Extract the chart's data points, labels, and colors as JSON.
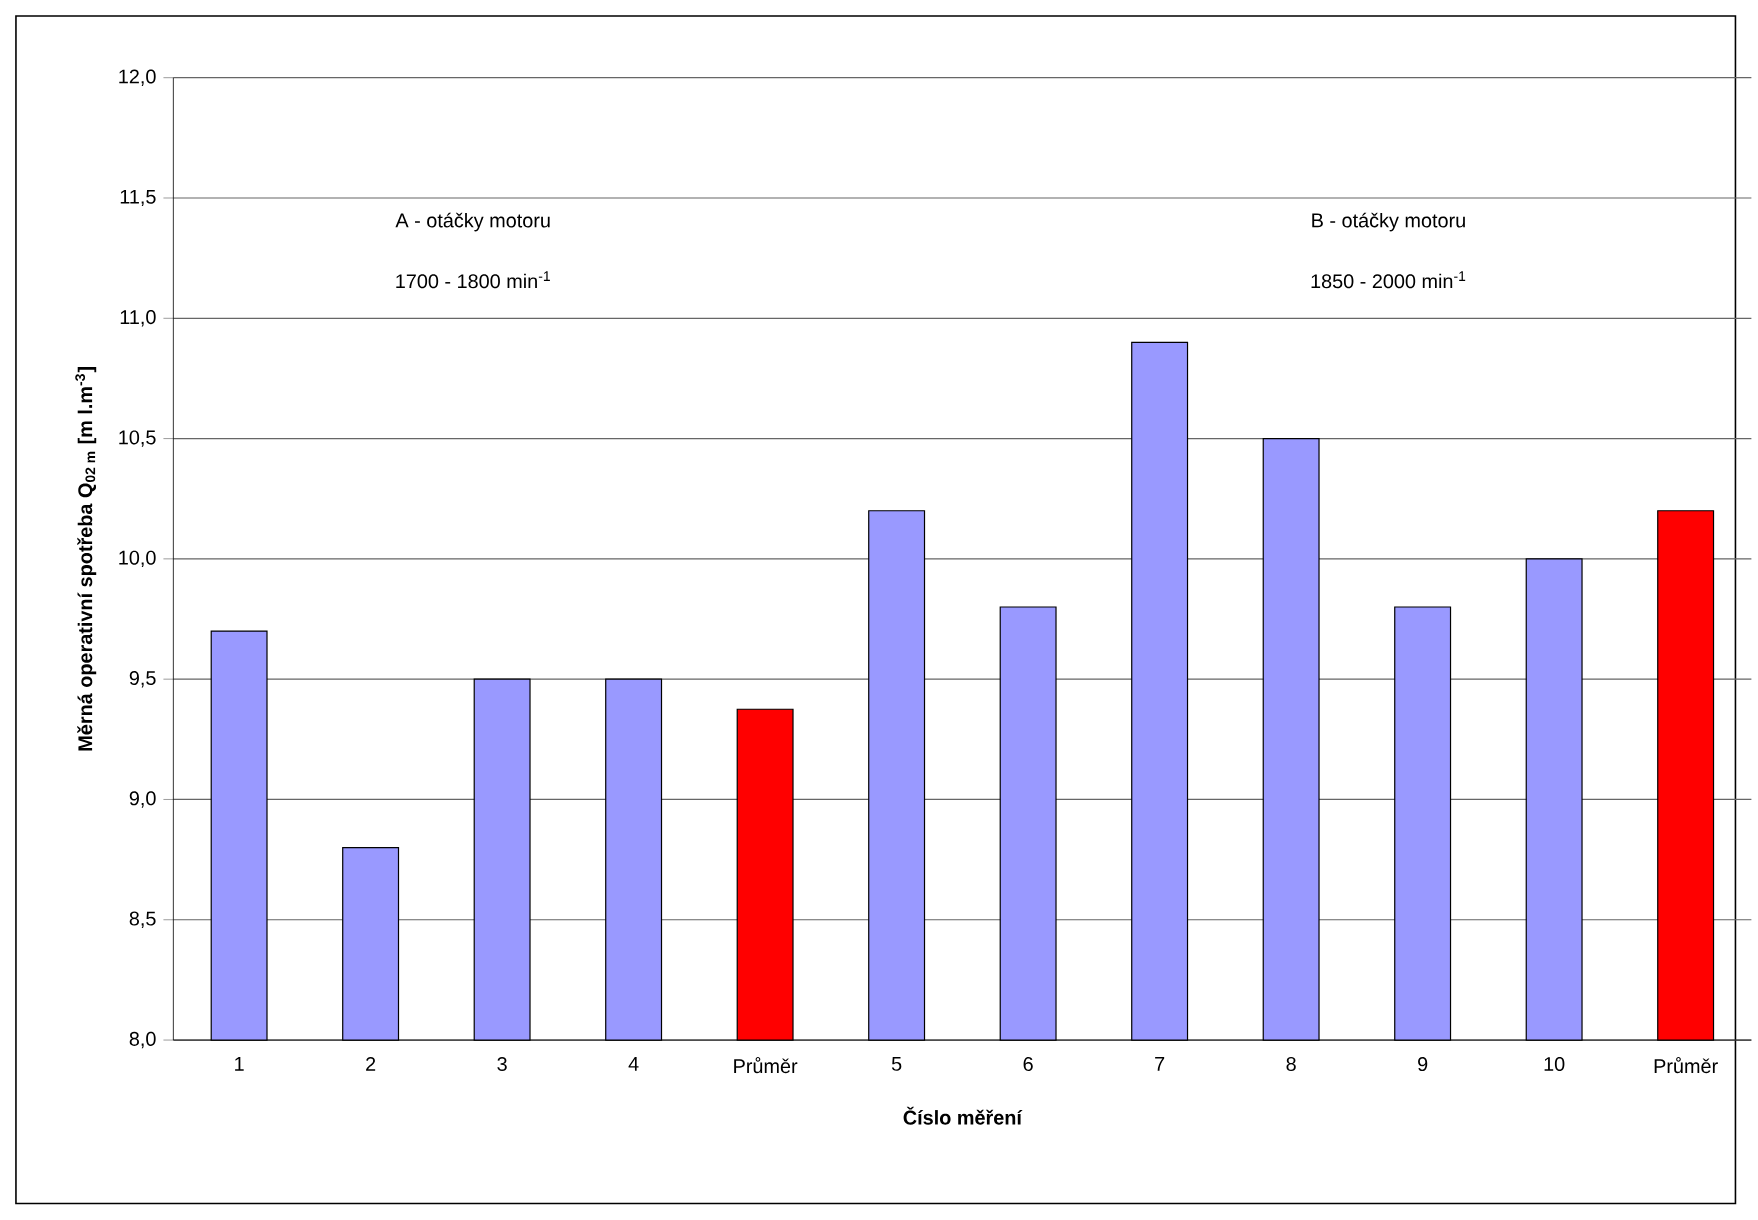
{
  "chart_data": {
    "type": "bar",
    "xlabel": "Číslo měření",
    "ylabel": "Měrná operativní spotřeba Q$_{02 m}$ [m l.m$^{-3}$]",
    "categories": [
      "1",
      "2",
      "3",
      "4",
      "Průměr",
      "5",
      "6",
      "7",
      "8",
      "9",
      "10",
      "Průměr"
    ],
    "values": [
      9.7,
      8.8,
      9.5,
      9.5,
      9.375,
      10.2,
      9.8,
      10.9,
      10.5,
      9.8,
      10.0,
      10.2
    ],
    "colors": [
      "#9999ff",
      "#9999ff",
      "#9999ff",
      "#9999ff",
      "#ff0000",
      "#9999ff",
      "#9999ff",
      "#9999ff",
      "#9999ff",
      "#9999ff",
      "#9999ff",
      "#ff0000"
    ],
    "ylim": [
      8,
      12
    ],
    "yticks": [
      {
        "value": 8,
        "label": "8,0"
      },
      {
        "value": 8.5,
        "label": "8,5"
      },
      {
        "value": 9,
        "label": "9,0"
      },
      {
        "value": 9.5,
        "label": "9,5"
      },
      {
        "value": 10,
        "label": "10,0"
      },
      {
        "value": 10.5,
        "label": "10,5"
      },
      {
        "value": 11,
        "label": "11,0"
      },
      {
        "value": 11.5,
        "label": "11,5"
      },
      {
        "value": 12,
        "label": "12,0"
      }
    ],
    "grid": "y",
    "annotations": [
      "A - otáčky motoru",
      "1700 - 1800 min$^{-1}$",
      "B - otáčky motoru",
      "1850 - 2000 min$^{-1}$"
    ]
  }
}
